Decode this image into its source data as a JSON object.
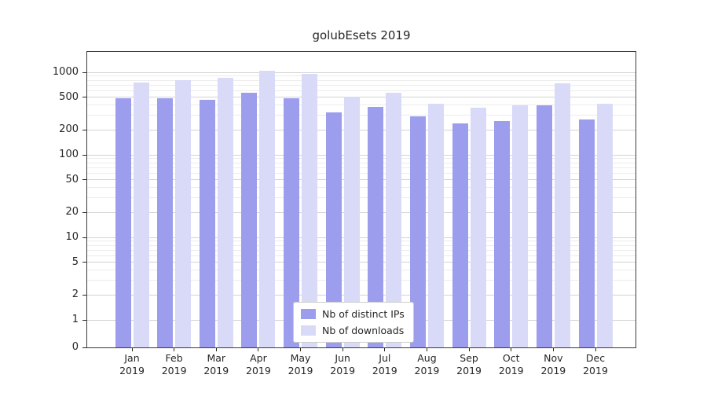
{
  "chart_data": {
    "type": "bar",
    "title": "golubEsets 2019",
    "categories": [
      {
        "month": "Jan",
        "year": "2019"
      },
      {
        "month": "Feb",
        "year": "2019"
      },
      {
        "month": "Mar",
        "year": "2019"
      },
      {
        "month": "Apr",
        "year": "2019"
      },
      {
        "month": "May",
        "year": "2019"
      },
      {
        "month": "Jun",
        "year": "2019"
      },
      {
        "month": "Jul",
        "year": "2019"
      },
      {
        "month": "Aug",
        "year": "2019"
      },
      {
        "month": "Sep",
        "year": "2019"
      },
      {
        "month": "Oct",
        "year": "2019"
      },
      {
        "month": "Nov",
        "year": "2019"
      },
      {
        "month": "Dec",
        "year": "2019"
      }
    ],
    "series": [
      {
        "name": "Nb of distinct IPs",
        "color": "#9d9dee",
        "values": [
          480,
          480,
          465,
          560,
          490,
          330,
          385,
          290,
          240,
          255,
          395,
          270
        ]
      },
      {
        "name": "Nb of downloads",
        "color": "#d9d9f8",
        "values": [
          760,
          810,
          860,
          1050,
          950,
          510,
          560,
          420,
          370,
          400,
          730,
          420
        ]
      }
    ],
    "yscale": "symlog",
    "yticks": [
      0,
      1,
      2,
      5,
      10,
      20,
      50,
      100,
      200,
      500,
      1000
    ],
    "y_minor_ticks": [
      3,
      4,
      6,
      7,
      8,
      9,
      30,
      40,
      60,
      70,
      80,
      90,
      300,
      400,
      600,
      700,
      800,
      900
    ],
    "ylim": [
      0,
      1400
    ],
    "grid": true,
    "legend_position": "lower center"
  }
}
